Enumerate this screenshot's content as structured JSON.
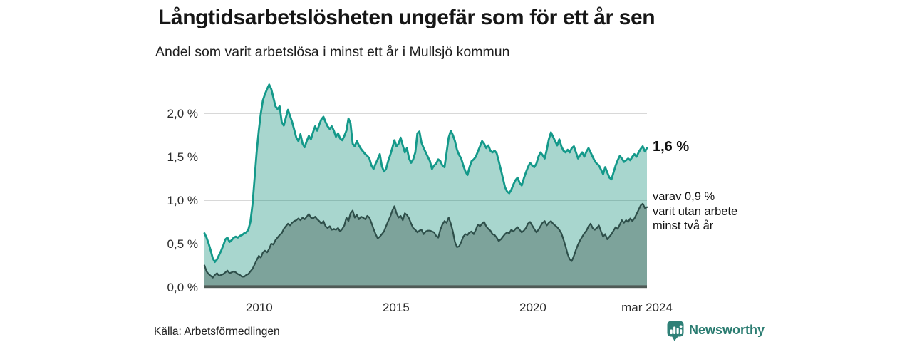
{
  "title": "Långtidsarbetslösheten ungefär som för ett år sen",
  "subtitle": "Andel som varit arbetslösa i minst ett år i Mullsjö kommun",
  "source": "Källa: Arbetsförmedlingen",
  "branding": {
    "name": "Newsworthy",
    "color": "#2c7d72"
  },
  "annotations": {
    "total_end_label": "1,6 %",
    "secondary_end_label": "varav 0,9 %\nvarit utan arbete\nminst två år"
  },
  "chart_data": {
    "type": "area",
    "title": "Långtidsarbetslösheten ungefär som för ett år sen",
    "subtitle": "Andel som varit arbetslösa i minst ett år i Mullsjö kommun",
    "unit": "%",
    "frequency": "monthly (approximate readings)",
    "x_start_year": 2008.0,
    "x_end_year": 2024.1667,
    "x_ticks": [
      {
        "label": "2010",
        "year": 2010
      },
      {
        "label": "2015",
        "year": 2015
      },
      {
        "label": "2020",
        "year": 2020
      },
      {
        "label": "mar 2024",
        "year": 2024.1667
      }
    ],
    "y_ticks": [
      {
        "label": "0,0 %",
        "value": 0
      },
      {
        "label": "0,5 %",
        "value": 0.5
      },
      {
        "label": "1,0 %",
        "value": 1
      },
      {
        "label": "1,5 %",
        "value": 1.5
      },
      {
        "label": "2,0 %",
        "value": 2
      }
    ],
    "grid": true,
    "grid_color": "#d8d8d8",
    "axis_color": "#4f5a56",
    "legend_position": "none",
    "series": [
      {
        "name": "Arbetslösa minst ett år (totalt)",
        "end_value": 1.6,
        "end_value_label": "1,6 %",
        "line_color": "#14998a",
        "fill_color": "rgba(6,138,115,0.35)",
        "line_width": 2.8,
        "values": [
          0.62,
          0.57,
          0.5,
          0.42,
          0.33,
          0.29,
          0.32,
          0.37,
          0.42,
          0.48,
          0.55,
          0.57,
          0.52,
          0.54,
          0.57,
          0.58,
          0.57,
          0.59,
          0.6,
          0.62,
          0.63,
          0.66,
          0.75,
          0.95,
          1.25,
          1.55,
          1.8,
          2.0,
          2.15,
          2.22,
          2.28,
          2.33,
          2.28,
          2.18,
          2.08,
          2.05,
          2.08,
          1.9,
          1.86,
          1.95,
          2.04,
          1.97,
          1.9,
          1.81,
          1.72,
          1.68,
          1.76,
          1.65,
          1.61,
          1.68,
          1.74,
          1.7,
          1.78,
          1.85,
          1.8,
          1.87,
          1.93,
          1.96,
          1.9,
          1.85,
          1.82,
          1.85,
          1.8,
          1.73,
          1.77,
          1.71,
          1.69,
          1.74,
          1.8,
          1.94,
          1.88,
          1.65,
          1.62,
          1.68,
          1.63,
          1.59,
          1.56,
          1.53,
          1.51,
          1.48,
          1.4,
          1.36,
          1.42,
          1.47,
          1.53,
          1.39,
          1.33,
          1.36,
          1.45,
          1.52,
          1.6,
          1.69,
          1.62,
          1.65,
          1.72,
          1.63,
          1.55,
          1.6,
          1.48,
          1.43,
          1.47,
          1.55,
          1.77,
          1.79,
          1.66,
          1.6,
          1.55,
          1.5,
          1.45,
          1.36,
          1.4,
          1.42,
          1.47,
          1.45,
          1.4,
          1.38,
          1.55,
          1.72,
          1.8,
          1.75,
          1.68,
          1.58,
          1.52,
          1.48,
          1.4,
          1.33,
          1.29,
          1.38,
          1.45,
          1.47,
          1.5,
          1.56,
          1.62,
          1.68,
          1.65,
          1.6,
          1.63,
          1.57,
          1.55,
          1.57,
          1.54,
          1.45,
          1.35,
          1.25,
          1.15,
          1.1,
          1.08,
          1.12,
          1.18,
          1.23,
          1.26,
          1.2,
          1.17,
          1.25,
          1.32,
          1.38,
          1.43,
          1.4,
          1.38,
          1.42,
          1.5,
          1.55,
          1.52,
          1.48,
          1.58,
          1.7,
          1.78,
          1.73,
          1.68,
          1.63,
          1.7,
          1.62,
          1.57,
          1.55,
          1.58,
          1.55,
          1.6,
          1.62,
          1.55,
          1.48,
          1.52,
          1.55,
          1.5,
          1.56,
          1.6,
          1.55,
          1.5,
          1.45,
          1.42,
          1.4,
          1.35,
          1.3,
          1.38,
          1.32,
          1.26,
          1.24,
          1.32,
          1.4,
          1.46,
          1.51,
          1.48,
          1.44,
          1.46,
          1.48,
          1.46,
          1.5,
          1.53,
          1.5,
          1.55,
          1.59,
          1.62,
          1.56,
          1.6
        ]
      },
      {
        "name": "varav utan arbete minst två år",
        "end_value": 0.9,
        "end_value_label": "0,9 %",
        "line_color": "#2e4f4a",
        "fill_color": "rgba(60,87,81,0.40)",
        "line_width": 2.2,
        "values": [
          0.25,
          0.18,
          0.15,
          0.13,
          0.11,
          0.14,
          0.16,
          0.13,
          0.14,
          0.15,
          0.17,
          0.19,
          0.16,
          0.17,
          0.18,
          0.17,
          0.15,
          0.14,
          0.12,
          0.12,
          0.14,
          0.15,
          0.18,
          0.21,
          0.26,
          0.31,
          0.36,
          0.34,
          0.4,
          0.42,
          0.4,
          0.44,
          0.5,
          0.49,
          0.54,
          0.57,
          0.6,
          0.62,
          0.67,
          0.7,
          0.73,
          0.71,
          0.74,
          0.76,
          0.77,
          0.79,
          0.77,
          0.8,
          0.78,
          0.81,
          0.84,
          0.8,
          0.79,
          0.81,
          0.78,
          0.76,
          0.73,
          0.76,
          0.7,
          0.68,
          0.7,
          0.66,
          0.67,
          0.66,
          0.68,
          0.64,
          0.67,
          0.71,
          0.8,
          0.76,
          0.85,
          0.88,
          0.8,
          0.83,
          0.78,
          0.81,
          0.8,
          0.78,
          0.82,
          0.8,
          0.74,
          0.67,
          0.61,
          0.56,
          0.58,
          0.61,
          0.64,
          0.7,
          0.76,
          0.81,
          0.88,
          0.93,
          0.85,
          0.8,
          0.82,
          0.77,
          0.85,
          0.83,
          0.79,
          0.73,
          0.68,
          0.66,
          0.63,
          0.65,
          0.66,
          0.61,
          0.64,
          0.65,
          0.65,
          0.64,
          0.63,
          0.59,
          0.57,
          0.66,
          0.72,
          0.76,
          0.74,
          0.8,
          0.73,
          0.64,
          0.52,
          0.46,
          0.47,
          0.52,
          0.58,
          0.61,
          0.6,
          0.63,
          0.64,
          0.61,
          0.66,
          0.72,
          0.7,
          0.73,
          0.75,
          0.7,
          0.67,
          0.65,
          0.61,
          0.6,
          0.57,
          0.53,
          0.55,
          0.58,
          0.61,
          0.63,
          0.62,
          0.66,
          0.64,
          0.67,
          0.69,
          0.66,
          0.63,
          0.65,
          0.68,
          0.73,
          0.75,
          0.71,
          0.67,
          0.63,
          0.66,
          0.7,
          0.74,
          0.76,
          0.71,
          0.74,
          0.76,
          0.73,
          0.71,
          0.69,
          0.66,
          0.62,
          0.55,
          0.47,
          0.38,
          0.32,
          0.3,
          0.36,
          0.43,
          0.49,
          0.54,
          0.58,
          0.62,
          0.65,
          0.7,
          0.73,
          0.68,
          0.66,
          0.68,
          0.71,
          0.64,
          0.58,
          0.61,
          0.55,
          0.58,
          0.61,
          0.65,
          0.69,
          0.67,
          0.72,
          0.77,
          0.74,
          0.77,
          0.75,
          0.79,
          0.76,
          0.79,
          0.84,
          0.89,
          0.94,
          0.96,
          0.91,
          0.92
        ]
      }
    ]
  }
}
